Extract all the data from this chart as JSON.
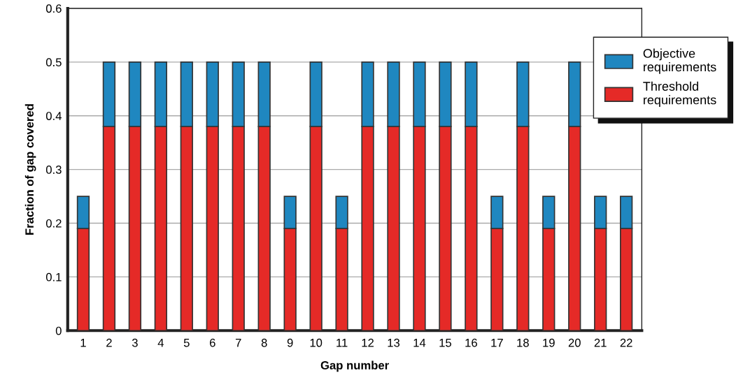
{
  "chart_data": {
    "type": "bar",
    "stacked": true,
    "xlabel": "Gap number",
    "ylabel": "Fraction of gap covered",
    "categories": [
      "1",
      "2",
      "3",
      "4",
      "5",
      "6",
      "7",
      "8",
      "9",
      "10",
      "11",
      "12",
      "13",
      "14",
      "15",
      "16",
      "17",
      "18",
      "19",
      "20",
      "21",
      "22"
    ],
    "series": [
      {
        "name": "Threshold requirements",
        "color": "#e52a27",
        "values": [
          0.19,
          0.38,
          0.38,
          0.38,
          0.38,
          0.38,
          0.38,
          0.38,
          0.19,
          0.38,
          0.19,
          0.38,
          0.38,
          0.38,
          0.38,
          0.38,
          0.19,
          0.38,
          0.19,
          0.38,
          0.19,
          0.19
        ]
      },
      {
        "name": "Objective requirements",
        "color": "#1f87c0",
        "values": [
          0.06,
          0.12,
          0.12,
          0.12,
          0.12,
          0.12,
          0.12,
          0.12,
          0.06,
          0.12,
          0.06,
          0.12,
          0.12,
          0.12,
          0.12,
          0.12,
          0.06,
          0.12,
          0.06,
          0.12,
          0.06,
          0.06
        ]
      }
    ],
    "ylim": [
      0,
      0.6
    ],
    "yticks": [
      0,
      0.1,
      0.2,
      0.3,
      0.4,
      0.5,
      0.6
    ],
    "grid": "y",
    "legend": "top right"
  }
}
